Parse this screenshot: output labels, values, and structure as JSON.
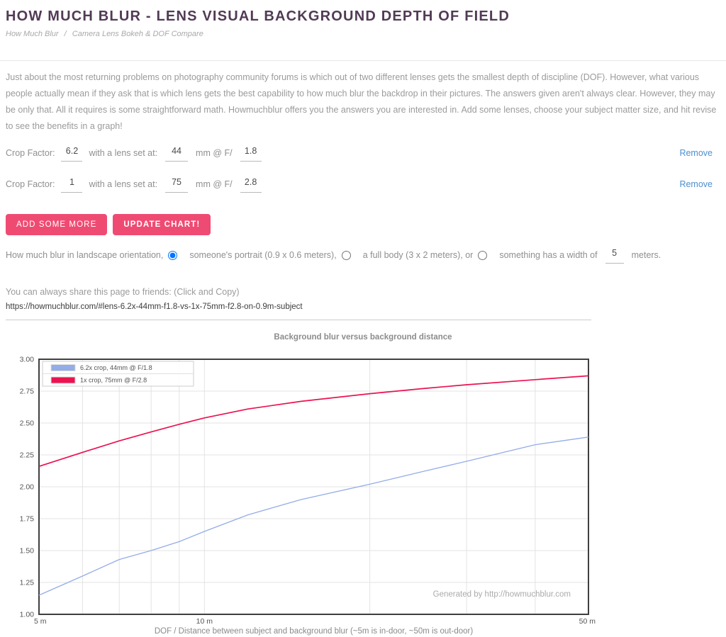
{
  "header": {
    "title": "HOW MUCH BLUR - LENS VISUAL BACKGROUND DEPTH OF FIELD",
    "breadcrumb": {
      "home": "How Much Blur",
      "separator": "/",
      "current": "Camera Lens Bokeh & DOF Compare"
    }
  },
  "intro": "Just about the most returning problems on photography community forums is which out of two different lenses gets the smallest depth of discipline (DOF). However, what various people actually mean if they ask that is which lens gets the best capability to how much blur the backdrop in their pictures. The answers given aren't always clear. However, they may be only that. All it requires is some straightforward math. Howmuchblur offers you the answers you are interested in. Add some lenses, choose your subject matter size, and hit revise to see the benefits in a graph!",
  "form": {
    "crop_label": "Crop Factor:",
    "lens_label": "with a lens set at:",
    "aperture_label": "mm @ F/",
    "remove_label": "Remove",
    "rows": [
      {
        "crop": "6.2",
        "focal": "44",
        "fstop": "1.8"
      },
      {
        "crop": "1",
        "focal": "75",
        "fstop": "2.8"
      }
    ],
    "add_button": "ADD SOME MORE",
    "update_button": "UPDATE CHART!"
  },
  "subject": {
    "prefix": "How much blur in landscape orientation,",
    "options": [
      {
        "label": "someone's portrait (0.9 x 0.6 meters),",
        "selected": true
      },
      {
        "label": "a full body (3 x 2 meters), or",
        "selected": false
      },
      {
        "label": "something has a width of",
        "selected": false
      }
    ],
    "width_value": "5",
    "suffix": "meters."
  },
  "share": {
    "label": "You can always share this page to friends: (Click and Copy)",
    "url": "https://howmuchblur.com/#lens-6.2x-44mm-f1.8-vs-1x-75mm-f2.8-on-0.9m-subject"
  },
  "colors": {
    "accent": "#ef4b72",
    "link_blue": "#4c8fd0",
    "title_purple": "#523a56",
    "series_blue": "#94ace8",
    "series_red": "#ec1250"
  },
  "chart_data": {
    "type": "line",
    "title": "Background blur versus background distance",
    "xlabel": "DOF / Distance between subject and background blur (~5m is in-door, ~50m is out-door)",
    "watermark": "Generated by http://howmuchblur.com",
    "x_scale": "log",
    "xlim": [
      5,
      50
    ],
    "ylim": [
      1.0,
      3.0
    ],
    "grid": true,
    "legend_position": "top-left",
    "x": [
      5,
      6,
      7,
      8,
      9,
      10,
      12,
      15,
      20,
      25,
      30,
      40,
      50
    ],
    "x_ticks": [
      {
        "value": 5,
        "label": "5 m"
      },
      {
        "value": 10,
        "label": "10 m"
      },
      {
        "value": 50,
        "label": "50 m"
      }
    ],
    "x_gridlines": [
      6,
      7,
      8,
      9,
      10,
      20,
      30,
      40
    ],
    "y_ticks": [
      {
        "value": 1.0,
        "label": "1.00"
      },
      {
        "value": 1.25,
        "label": "1.25"
      },
      {
        "value": 1.5,
        "label": "1.50"
      },
      {
        "value": 1.75,
        "label": "1.75"
      },
      {
        "value": 2.0,
        "label": "2.00"
      },
      {
        "value": 2.25,
        "label": "2.25"
      },
      {
        "value": 2.5,
        "label": "2.50"
      },
      {
        "value": 2.75,
        "label": "2.75"
      },
      {
        "value": 3.0,
        "label": "3.00"
      }
    ],
    "series": [
      {
        "name": "6.2x crop, 44mm @ F/1.8",
        "color": "#94ace8",
        "values": [
          1.15,
          1.3,
          1.43,
          1.5,
          1.57,
          1.65,
          1.78,
          1.9,
          2.02,
          2.12,
          2.2,
          2.33,
          2.39
        ]
      },
      {
        "name": "1x crop, 75mm @ F/2.8",
        "color": "#ec1250",
        "values": [
          2.16,
          2.27,
          2.36,
          2.43,
          2.49,
          2.54,
          2.61,
          2.67,
          2.73,
          2.77,
          2.8,
          2.84,
          2.87
        ]
      }
    ]
  }
}
